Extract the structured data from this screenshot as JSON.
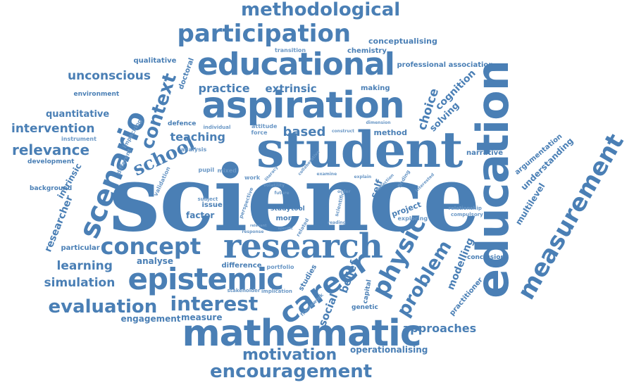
{
  "colors": {
    "ink": "#4a7fb5",
    "ink_light": "#6b98c6",
    "background": "#ffffff"
  },
  "words": [
    {
      "text": "science"
    },
    {
      "text": "student"
    },
    {
      "text": "education"
    },
    {
      "text": "aspiration"
    },
    {
      "text": "educational"
    },
    {
      "text": "research"
    },
    {
      "text": "mathematic"
    },
    {
      "text": "epistemic"
    },
    {
      "text": "participation"
    },
    {
      "text": "scenario"
    },
    {
      "text": "measurement"
    },
    {
      "text": "concept"
    },
    {
      "text": "career"
    },
    {
      "text": "physic"
    },
    {
      "text": "methodological"
    },
    {
      "text": "encouragement"
    },
    {
      "text": "interest"
    },
    {
      "text": "evaluation"
    },
    {
      "text": "school"
    },
    {
      "text": "context"
    },
    {
      "text": "motivation"
    },
    {
      "text": "problem"
    },
    {
      "text": "relevance"
    },
    {
      "text": "intervention"
    },
    {
      "text": "unconscious"
    },
    {
      "text": "approaches"
    },
    {
      "text": "simulation"
    },
    {
      "text": "learning"
    },
    {
      "text": "teaching"
    },
    {
      "text": "based"
    },
    {
      "text": "choice"
    },
    {
      "text": "practice"
    },
    {
      "text": "extrinsic"
    },
    {
      "text": "modelling"
    },
    {
      "text": "belief"
    },
    {
      "text": "social"
    },
    {
      "text": "quantitative"
    },
    {
      "text": "cognition"
    },
    {
      "text": "solving"
    },
    {
      "text": "understanding"
    },
    {
      "text": "multilevel"
    },
    {
      "text": "engagement"
    },
    {
      "text": "measure"
    },
    {
      "text": "operationalising"
    },
    {
      "text": "conceptualising"
    },
    {
      "text": "chemistry"
    },
    {
      "text": "professional association"
    },
    {
      "text": "qualitative"
    },
    {
      "text": "doctoral"
    },
    {
      "text": "environment"
    },
    {
      "text": "making"
    },
    {
      "text": "method"
    },
    {
      "text": "narrative"
    },
    {
      "text": "argumentation"
    },
    {
      "text": "practitioner"
    },
    {
      "text": "conclusion"
    },
    {
      "text": "researcher"
    },
    {
      "text": "particular"
    },
    {
      "text": "analyse"
    },
    {
      "text": "difference"
    },
    {
      "text": "factor"
    },
    {
      "text": "intrinsic"
    },
    {
      "text": "development"
    },
    {
      "text": "background"
    },
    {
      "text": "instrument"
    },
    {
      "text": "impacking"
    },
    {
      "text": "different"
    },
    {
      "text": "defence"
    },
    {
      "text": "validation"
    },
    {
      "text": "analysis"
    },
    {
      "text": "pupil"
    },
    {
      "text": "mixed"
    },
    {
      "text": "work"
    },
    {
      "text": "self"
    },
    {
      "text": "gender"
    },
    {
      "text": "scientific"
    },
    {
      "text": "study"
    },
    {
      "text": "tool"
    },
    {
      "text": "more"
    },
    {
      "text": "project"
    },
    {
      "text": "exploring"
    },
    {
      "text": "relationship"
    },
    {
      "text": "compulsory"
    },
    {
      "text": "studies"
    },
    {
      "text": "genetic"
    },
    {
      "text": "capital"
    },
    {
      "text": "portfolio"
    },
    {
      "text": "stakeholder"
    },
    {
      "text": "implication"
    },
    {
      "text": "framework"
    },
    {
      "text": "issue"
    },
    {
      "text": "transition"
    },
    {
      "text": "attitude"
    },
    {
      "text": "force"
    },
    {
      "text": "individual"
    },
    {
      "text": "finding"
    },
    {
      "text": "perspective"
    },
    {
      "text": "subject"
    },
    {
      "text": "related"
    },
    {
      "text": "response"
    },
    {
      "text": "reading"
    },
    {
      "text": "dimension"
    },
    {
      "text": "construct"
    },
    {
      "text": "literacy"
    },
    {
      "text": "reflection"
    },
    {
      "text": "interested"
    },
    {
      "text": "collaborative"
    },
    {
      "text": "examine"
    },
    {
      "text": "volatility"
    },
    {
      "text": "future"
    },
    {
      "text": "order"
    },
    {
      "text": "relevant"
    },
    {
      "text": "specific"
    },
    {
      "text": "explain"
    }
  ]
}
